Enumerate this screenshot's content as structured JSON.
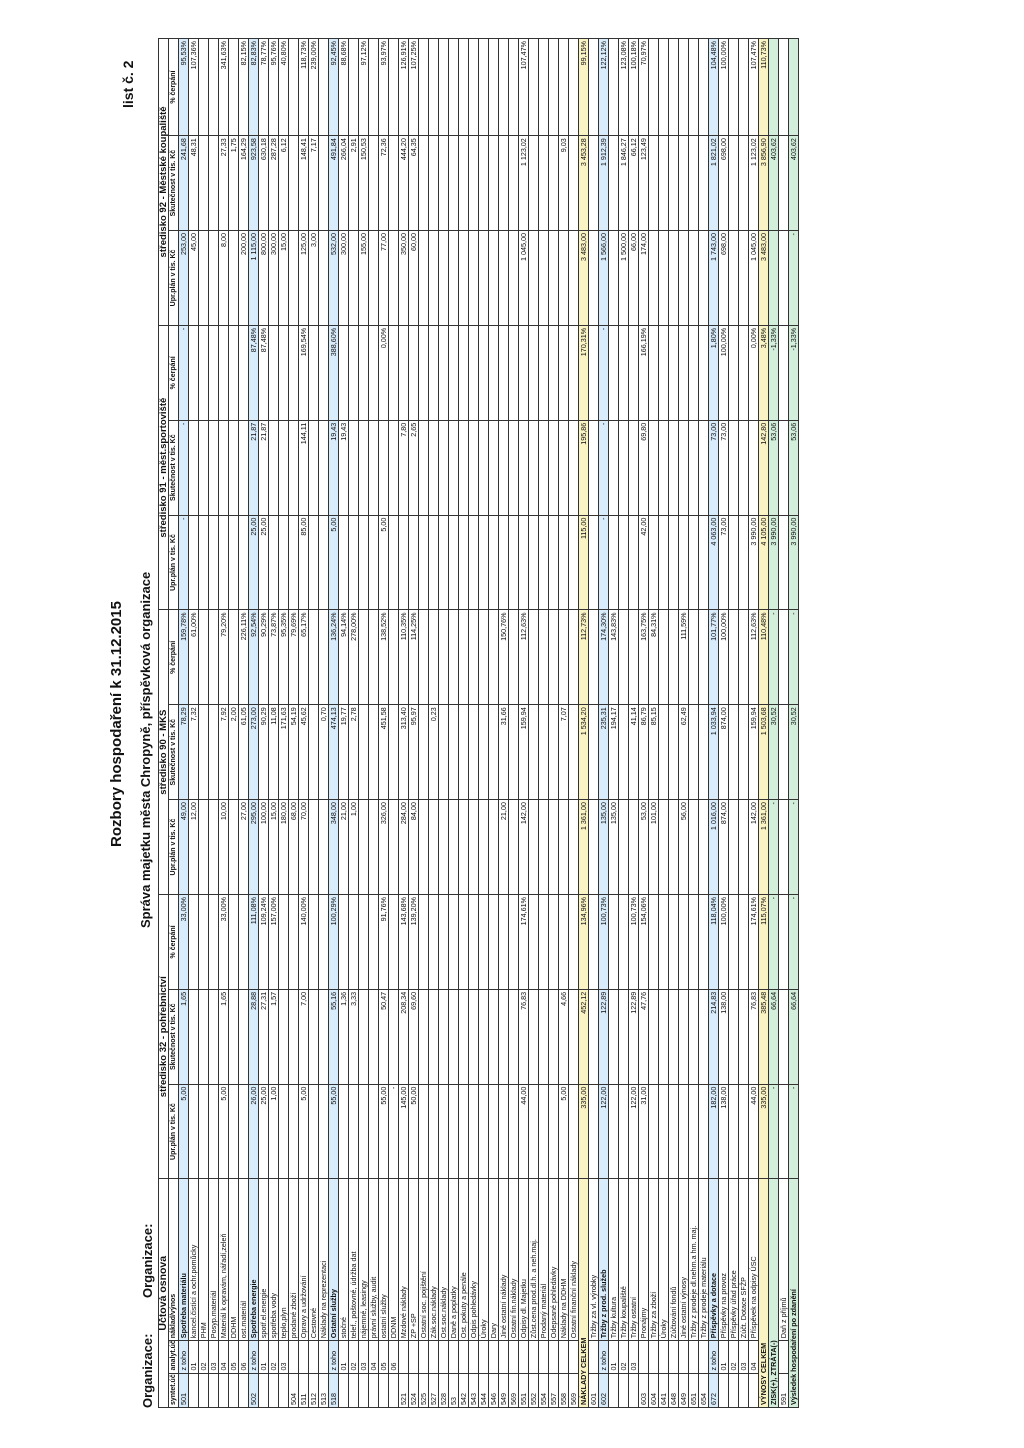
{
  "header": {
    "org_label": "Organizace:",
    "org_label2": "Organizace:",
    "title": "Rozbory hospodaření k 31.12.2015",
    "sheet": "list č. 2",
    "org_name": "Správa majetku města Chropyně, příspěvková organizace"
  },
  "table": {
    "col_acct": "Účtová osnova",
    "col_sa": "syntet.účet",
    "col_an": "analyt.účet",
    "col_name": "náklad/výnos",
    "centers": [
      "středisko 32 - pohřebnictví",
      "středisko 90 - MKS",
      "středisko 91 - měst.sportoviště",
      "středisko 92 - Městské koupaliště"
    ],
    "sub_plan": "Upr.plán v tis. Kč",
    "sub_act": "Skutečnost v tis. Kč",
    "sub_pct": "% čerpání",
    "rows": [
      [
        "501",
        "z toho",
        "Spotřeba materiálu",
        "5,00",
        "1,65",
        "33,00%",
        "49,00",
        "78,29",
        "159,78%",
        "-",
        "-",
        "-",
        "253,00",
        "241,68",
        "95,53%"
      ],
      [
        "",
        "01",
        "kancel.čistící a ochr.pomůcky",
        "",
        "",
        "",
        "12,00",
        "7,32",
        "61,00%",
        "",
        "",
        "",
        "45,00",
        "48,31",
        "107,36%"
      ],
      [
        "",
        "02",
        "PHM",
        "",
        "",
        "",
        "",
        "",
        "",
        "",
        "",
        "",
        "",
        "",
        ""
      ],
      [
        "",
        "03",
        "Posyp.materiál",
        "",
        "",
        "",
        "",
        "",
        "",
        "",
        "",
        "",
        "",
        "",
        ""
      ],
      [
        "",
        "04",
        "Materiál k opravám, nářadí,zeleň",
        "5,00",
        "1,65",
        "33,00%",
        "10,00",
        "7,92",
        "79,20%",
        "",
        "",
        "",
        "8,00",
        "27,33",
        "341,63%"
      ],
      [
        "",
        "05",
        "DDHM",
        "",
        "",
        "",
        "",
        "2,00",
        "",
        "",
        "",
        "",
        "",
        "1,75",
        ""
      ],
      [
        "",
        "06",
        "ost.materiál",
        "",
        "",
        "",
        "27,00",
        "61,05",
        "226,11%",
        "",
        "",
        "",
        "200,00",
        "164,29",
        "82,15%"
      ],
      [
        "502",
        "z toho",
        "Spotřeba energie",
        "26,00",
        "28,88",
        "111,08%",
        "295,00",
        "273,00",
        "92,54%",
        "25,00",
        "21,87",
        "87,48%",
        "1 115,00",
        "923,58",
        "82,83%"
      ],
      [
        "",
        "01",
        "spotř.el.energie",
        "25,00",
        "27,31",
        "109,24%",
        "100,00",
        "90,29",
        "90,29%",
        "25,00",
        "21,87",
        "87,48%",
        "800,00",
        "630,18",
        "78,77%"
      ],
      [
        "",
        "02",
        "spotřeba vody",
        "1,00",
        "1,57",
        "157,00%",
        "15,00",
        "11,08",
        "73,87%",
        "",
        "",
        "",
        "300,00",
        "287,28",
        "95,76%"
      ],
      [
        "",
        "03",
        "teplo,plyn",
        "",
        "",
        "",
        "180,00",
        "171,63",
        "95,35%",
        "",
        "",
        "",
        "15,00",
        "6,12",
        "40,80%"
      ],
      [
        "504",
        "",
        "prodané zboží",
        "",
        "",
        "",
        "68,00",
        "54,19",
        "79,69%",
        "",
        "",
        "",
        "",
        "",
        ""
      ],
      [
        "511",
        "",
        "Opravy a udržování",
        "5,00",
        "7,00",
        "140,00%",
        "70,00",
        "45,62",
        "65,17%",
        "85,00",
        "144,11",
        "169,54%",
        "125,00",
        "148,41",
        "118,73%"
      ],
      [
        "512",
        "",
        "Cestovné",
        "",
        "",
        "",
        "",
        "",
        "",
        "",
        "",
        "",
        "3,00",
        "7,17",
        "239,00%"
      ],
      [
        "513",
        "",
        "Náklady na reprezentaci",
        "",
        "",
        "",
        "",
        "0,70",
        "",
        "",
        "",
        "",
        "",
        "",
        ""
      ],
      [
        "518",
        "z toho",
        "Ostatní služby",
        "55,00",
        "55,16",
        "100,29%",
        "348,00",
        "474,13",
        "136,24%",
        "5,00",
        "19,43",
        "388,60%",
        "532,00",
        "491,84",
        "92,45%"
      ],
      [
        "",
        "01",
        "stočné",
        "",
        "1,36",
        "",
        "21,00",
        "19,77",
        "94,14%",
        "",
        "19,43",
        "",
        "300,00",
        "266,04",
        "88,68%"
      ],
      [
        "",
        "02",
        "telef., poštovné, údržba dat",
        "",
        "3,33",
        "",
        "1,00",
        "2,78",
        "278,00%",
        "",
        "",
        "",
        "",
        "2,91",
        ""
      ],
      [
        "",
        "03",
        "nájemné, leasingy",
        "",
        "",
        "",
        "",
        "",
        "",
        "",
        "",
        "",
        "155,00",
        "150,53",
        "97,12%"
      ],
      [
        "",
        "04",
        "právní služby, audit",
        "",
        "",
        "",
        "",
        "",
        "",
        "",
        "",
        "",
        "",
        "",
        ""
      ],
      [
        "",
        "05",
        "ostatní služby",
        "55,00",
        "50,47",
        "91,76%",
        "326,00",
        "451,58",
        "138,52%",
        "5,00",
        "",
        "0,00%",
        "77,00",
        "72,36",
        "93,97%"
      ],
      [
        "",
        "06",
        "DDNM",
        "-",
        "",
        "",
        "",
        "",
        "",
        "",
        "",
        "",
        "",
        "",
        ""
      ],
      [
        "521",
        "",
        "Mzdové náklady",
        "145,00",
        "208,34",
        "143,68%",
        "284,00",
        "313,40",
        "110,35%",
        "",
        "7,80",
        "",
        "350,00",
        "444,20",
        "126,91%"
      ],
      [
        "524",
        "",
        "ZP +SP",
        "50,00",
        "69,60",
        "139,20%",
        "84,00",
        "95,97",
        "114,25%",
        "",
        "2,65",
        "",
        "60,00",
        "64,35",
        "107,25%"
      ],
      [
        "525",
        "",
        "Ostatní soc. pojištění",
        "",
        "",
        "",
        "",
        "",
        "",
        "",
        "",
        "",
        "",
        "",
        ""
      ],
      [
        "527",
        "",
        "Zák.soc.náklady",
        "",
        "",
        "",
        "",
        "0,23",
        "",
        "",
        "",
        "",
        "",
        "",
        ""
      ],
      [
        "528",
        "",
        "Ost.soc.náklady",
        "",
        "",
        "",
        "",
        "",
        "",
        "",
        "",
        "",
        "",
        "",
        ""
      ],
      [
        "53",
        "",
        "Daně a poplatky",
        "",
        "",
        "",
        "",
        "",
        "",
        "",
        "",
        "",
        "",
        "",
        ""
      ],
      [
        "542",
        "",
        "Ost. pokuty a penále",
        "",
        "",
        "",
        "",
        "",
        "",
        "",
        "",
        "",
        "",
        "",
        ""
      ],
      [
        "543",
        "",
        "Odpis pohledávky",
        "",
        "",
        "",
        "",
        "",
        "",
        "",
        "",
        "",
        "",
        "",
        ""
      ],
      [
        "544",
        "",
        "Úroky",
        "",
        "",
        "",
        "",
        "",
        "",
        "",
        "",
        "",
        "",
        "",
        ""
      ],
      [
        "546",
        "",
        "Dary",
        "",
        "",
        "",
        "",
        "",
        "",
        "",
        "",
        "",
        "",
        "",
        ""
      ],
      [
        "549",
        "",
        "Jiné ostatní náklady",
        "",
        "",
        "",
        "21,00",
        "31,66",
        "150,76%",
        "",
        "",
        "",
        "",
        "",
        ""
      ],
      [
        "569",
        "",
        "Ostatní fin.náklady",
        "",
        "",
        "",
        "",
        "",
        "",
        "",
        "",
        "",
        "",
        "",
        ""
      ],
      [
        "551",
        "",
        "Odpisy dl. Majetku",
        "44,00",
        "76,83",
        "174,61%",
        "142,00",
        "159,94",
        "112,63%",
        "",
        "",
        "",
        "1 045,00",
        "1 123,02",
        "107,47%"
      ],
      [
        "552",
        "",
        "Zůst.cena prod.dl.h. a neh.maj.",
        "",
        "",
        "",
        "",
        "",
        "",
        "",
        "",
        "",
        "",
        "",
        ""
      ],
      [
        "554",
        "",
        "Prodaný materiál",
        "",
        "",
        "",
        "",
        "",
        "",
        "",
        "",
        "",
        "",
        "",
        ""
      ],
      [
        "557",
        "",
        "Odepsané pohledávky",
        "",
        "",
        "",
        "",
        "",
        "",
        "",
        "",
        "",
        "",
        "",
        ""
      ],
      [
        "558",
        "",
        "Náklady na DDHM",
        "5,00",
        "4,66",
        "",
        "",
        "7,07",
        "",
        "",
        "",
        "",
        "",
        "9,03",
        ""
      ],
      [
        "569",
        "",
        "Ostatní finanční náklady",
        "",
        "",
        "",
        "",
        "",
        "",
        "",
        "",
        "",
        "",
        "",
        ""
      ]
    ],
    "total_costs": [
      "NÁKLADY CELKEM",
      "335,00",
      "452,12",
      "134,96%",
      "1 361,00",
      "1 534,20",
      "112,73%",
      "115,00",
      "195,86",
      "170,31%",
      "3 483,00",
      "3 453,28",
      "99,15%"
    ],
    "rows2": [
      [
        "601",
        "",
        "Tržby za vl. výrobky",
        "",
        "",
        "",
        "",
        "",
        "",
        "",
        "",
        "",
        "",
        "",
        ""
      ],
      [
        "602",
        "z toho",
        "Tržby z prod. služeb",
        "122,00",
        "122,89",
        "100,73%",
        "135,00",
        "235,31",
        "174,30%",
        "-",
        "-",
        "-",
        "1 566,00",
        "1 912,39",
        "122,12%"
      ],
      [
        "",
        "01",
        "Tržby kultura",
        "",
        "",
        "",
        "135,00",
        "194,17",
        "143,83%",
        "",
        "",
        "",
        "",
        "",
        ""
      ],
      [
        "",
        "02",
        "Tržby koupaliště",
        "",
        "",
        "",
        "",
        "",
        "",
        "",
        "",
        "",
        "1 500,00",
        "1 846,27",
        "123,08%"
      ],
      [
        "",
        "03",
        "Tržby ostatní",
        "122,00",
        "122,89",
        "100,73%",
        "",
        "41,14",
        "",
        "",
        "",
        "",
        "66,00",
        "66,12",
        "100,18%"
      ],
      [
        "603",
        "",
        "Pronájmy",
        "31,00",
        "47,76",
        "154,06%",
        "53,00",
        "86,79",
        "163,75%",
        "42,00",
        "69,80",
        "166,19%",
        "174,00",
        "123,49",
        "70,97%"
      ],
      [
        "604",
        "",
        "Tržby za zboží",
        "",
        "",
        "",
        "101,00",
        "85,15",
        "84,31%",
        "",
        "",
        "",
        "",
        "",
        ""
      ],
      [
        "641",
        "",
        "Úroky",
        "",
        "",
        "",
        "",
        "",
        "",
        "",
        "",
        "",
        "",
        "",
        ""
      ],
      [
        "648",
        "",
        "Zúčtování fondů",
        "",
        "",
        "",
        "",
        "",
        "",
        "",
        "",
        "",
        "",
        "",
        ""
      ],
      [
        "649",
        "",
        "Jiné ostatní výnosy",
        "",
        "",
        "",
        "56,00",
        "62,49",
        "111,59%",
        "",
        "",
        "",
        "",
        "",
        ""
      ],
      [
        "651",
        "",
        "Tržby z prodeje dl.nehm.a hm. maj.",
        "",
        "",
        "",
        "",
        "",
        "",
        "",
        "",
        "",
        "",
        "",
        ""
      ],
      [
        "654",
        "",
        "Tržby z prodeje materiálu",
        "",
        "",
        "",
        "",
        "",
        "",
        "",
        "",
        "",
        "",
        "",
        ""
      ],
      [
        "672",
        "z toho",
        "Příspěvky a dotace",
        "182,00",
        "214,83",
        "118,04%",
        "1 016,00",
        "1 033,94",
        "101,77%",
        "4 063,00",
        "73,00",
        "1,80%",
        "1 743,00",
        "1 821,02",
        "104,48%"
      ],
      [
        "",
        "01",
        "Příspěvky na provoz",
        "138,00",
        "138,00",
        "100,00%",
        "874,00",
        "874,00",
        "100,00%",
        "73,00",
        "73,00",
        "100,00%",
        "698,00",
        "698,00",
        "100,00%"
      ],
      [
        "",
        "02",
        "Příspěvky úřad práce",
        "",
        "",
        "",
        "",
        "",
        "",
        "",
        "",
        "",
        "",
        "",
        ""
      ],
      [
        "",
        "03",
        "Zúčt. Dotace SFŽP",
        "",
        "",
        "",
        "",
        "",
        "",
        "",
        "",
        "",
        "",
        "",
        ""
      ],
      [
        "",
        "04",
        "Příspěvek na odpisy ÚSC",
        "44,00",
        "76,83",
        "174,61%",
        "142,00",
        "159,94",
        "112,63%",
        "3 990,00",
        "",
        "0,00%",
        "1 045,00",
        "1 123,02",
        "107,47%"
      ]
    ],
    "total_rev": [
      "VÝNOSY CELKEM",
      "335,00",
      "385,48",
      "115,07%",
      "1 361,00",
      "1 503,68",
      "110,48%",
      "4 105,00",
      "142,80",
      "3,48%",
      "3 483,00",
      "3 856,90",
      "110,73%"
    ],
    "profit": [
      "ZISK(+), ZTRÁTA(-)",
      "-",
      "66,64",
      "-",
      "-",
      "30,52",
      "-",
      "3 990,00",
      "53,06",
      "-1,33%",
      "",
      "403,62",
      ""
    ],
    "tax_row": [
      "591",
      "",
      "Daň z příjmů"
    ],
    "result": [
      "Výsledek hospodaření po zdanění",
      "-",
      "66,64",
      "-",
      "-",
      "30,52",
      "-",
      "3 990,00",
      "53,06",
      "-1,33%",
      "-",
      "403,62",
      ""
    ]
  }
}
